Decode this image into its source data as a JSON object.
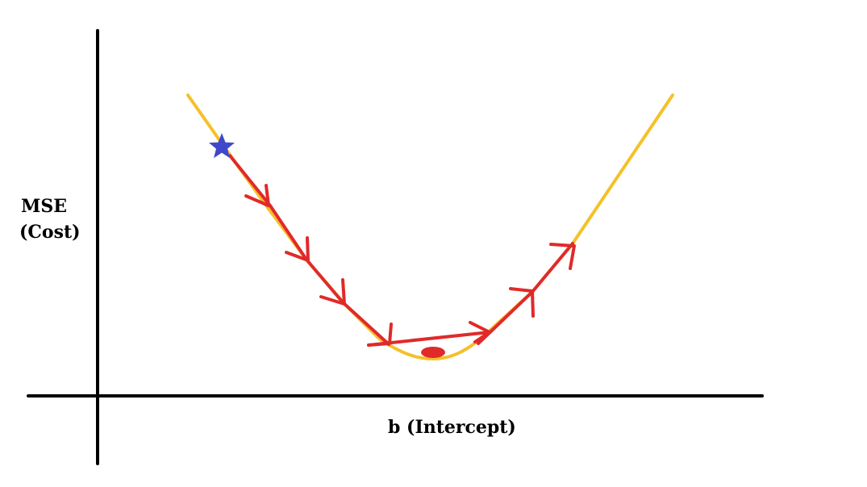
{
  "diagram": {
    "y_axis_label_line1": "MSE",
    "y_axis_label_line2": "(Cost)",
    "x_axis_label": "b (Intercept)",
    "colors": {
      "axis": "#000000",
      "cost_curve": "#f5c02a",
      "descent_path": "#e02a2a",
      "start_marker": "#3f48cc",
      "minimum_marker": "#e02a2a"
    },
    "icons": {
      "start_marker": "star-icon",
      "minimum_marker": "ellipse-icon"
    }
  }
}
